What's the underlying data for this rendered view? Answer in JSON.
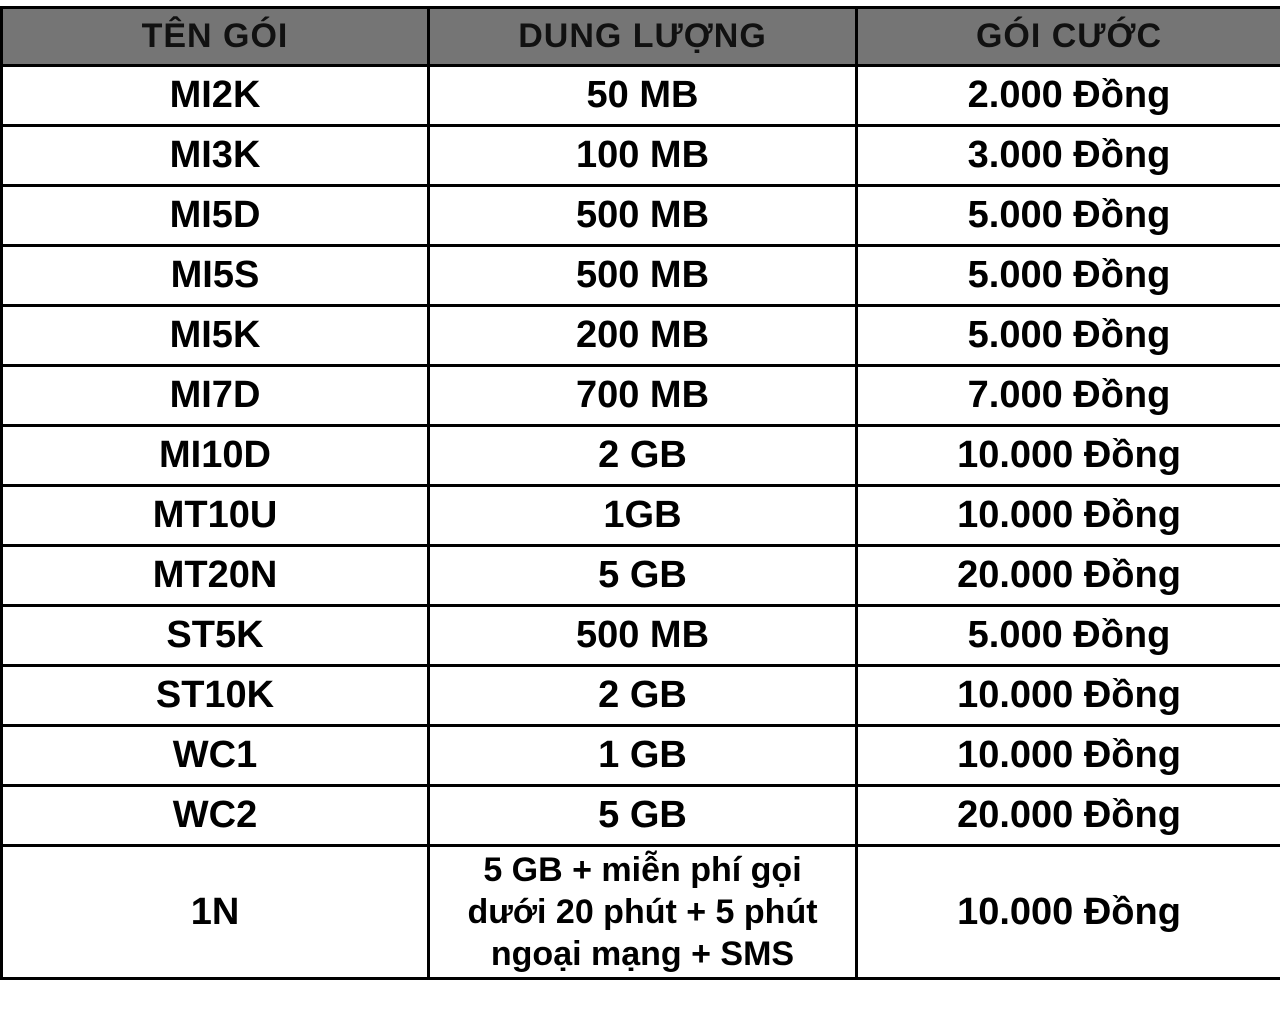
{
  "chart_data": {
    "type": "table",
    "title": "",
    "columns": [
      "TÊN GÓI",
      "DUNG LƯỢNG",
      "GÓI CƯỚC"
    ],
    "rows": [
      [
        "MI2K",
        "50 MB",
        "2.000 Đồng"
      ],
      [
        "MI3K",
        "100 MB",
        "3.000 Đồng"
      ],
      [
        "MI5D",
        "500 MB",
        "5.000 Đồng"
      ],
      [
        "MI5S",
        "500 MB",
        "5.000 Đồng"
      ],
      [
        "MI5K",
        "200 MB",
        "5.000 Đồng"
      ],
      [
        "MI7D",
        "700 MB",
        "7.000 Đồng"
      ],
      [
        "MI10D",
        "2 GB",
        "10.000 Đồng"
      ],
      [
        "MT10U",
        "1GB",
        "10.000 Đồng"
      ],
      [
        "MT20N",
        "5 GB",
        "20.000 Đồng"
      ],
      [
        "ST5K",
        "500 MB",
        "5.000 Đồng"
      ],
      [
        "ST10K",
        "2 GB",
        "10.000 Đồng"
      ],
      [
        "WC1",
        "1 GB",
        "10.000 Đồng"
      ],
      [
        "WC2",
        "5 GB",
        "20.000 Đồng"
      ],
      [
        "1N",
        "5 GB + miễn phí gọi\ndưới 20 phút + 5 phút\nngoại mạng  + SMS",
        "10.000 Đồng"
      ]
    ]
  },
  "colors": {
    "header_bg": "#757575",
    "border": "#000000",
    "cell_bg": "#ffffff",
    "text": "#000000",
    "header_text": "#111111"
  }
}
